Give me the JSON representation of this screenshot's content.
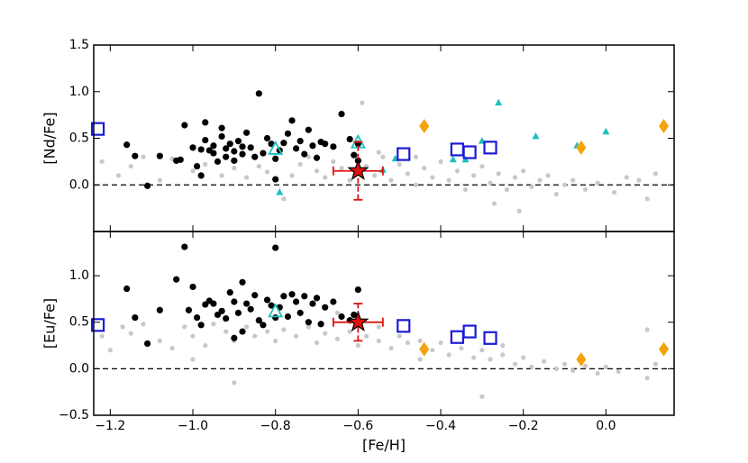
{
  "chart_data": [
    {
      "type": "scatter",
      "ylabel": "[Nd/Fe]",
      "xlim": [
        -1.24,
        0.165
      ],
      "ylim": [
        -0.5,
        1.5
      ],
      "xticks": [
        -1.2,
        -1.0,
        -0.8,
        -0.6,
        -0.4,
        -0.2,
        0.0
      ],
      "xtick_labels_shown": false,
      "yticks": [
        {
          "value": 0.0,
          "label": "0.0"
        },
        {
          "value": 0.5,
          "label": "0.5"
        },
        {
          "value": 1.0,
          "label": "1.0"
        },
        {
          "value": 1.5,
          "label": "1.5"
        }
      ],
      "hline": 0,
      "series": [
        {
          "color": "#c8c8c8",
          "marker": "dot",
          "x": [
            -1.22,
            -1.18,
            -1.15,
            -1.12,
            -1.08,
            -1.05,
            -1.0,
            -0.97,
            -0.93,
            -0.9,
            -0.87,
            -0.84,
            -0.82,
            -0.78,
            -0.76,
            -0.74,
            -0.72,
            -0.7,
            -0.68,
            -0.66,
            -0.64,
            -0.62,
            -0.59,
            -0.58,
            -0.56,
            -0.54,
            -0.52,
            -0.5,
            -0.48,
            -0.46,
            -0.44,
            -0.42,
            -0.4,
            -0.38,
            -0.36,
            -0.34,
            -0.32,
            -0.3,
            -0.28,
            -0.26,
            -0.24,
            -0.22,
            -0.2,
            -0.18,
            -0.16,
            -0.14,
            -0.12,
            -0.1,
            -0.08,
            -0.05,
            -0.02,
            0.02,
            0.05,
            0.08,
            0.1,
            0.12,
            -0.21,
            -0.27,
            -0.46,
            -0.55
          ],
          "values": [
            0.25,
            0.1,
            0.2,
            0.3,
            0.05,
            0.28,
            0.15,
            0.22,
            0.1,
            0.18,
            0.08,
            0.2,
            0.14,
            -0.15,
            0.1,
            0.22,
            0.3,
            0.15,
            0.08,
            0.25,
            0.18,
            0.05,
            0.88,
            0.2,
            0.1,
            0.3,
            0.05,
            0.22,
            0.12,
            0.0,
            0.18,
            0.08,
            0.25,
            0.05,
            0.15,
            -0.05,
            0.1,
            0.2,
            0.02,
            0.12,
            -0.05,
            0.08,
            0.15,
            -0.02,
            0.05,
            0.1,
            -0.1,
            0.0,
            0.05,
            -0.05,
            0.02,
            -0.08,
            0.08,
            0.05,
            -0.15,
            0.12,
            -0.28,
            -0.2,
            0.3,
            0.35
          ]
        },
        {
          "color": "#000000",
          "marker": "circle",
          "x": [
            -1.16,
            -1.14,
            -1.11,
            -1.08,
            -1.04,
            -1.03,
            -1.02,
            -1.0,
            -0.99,
            -0.98,
            -0.98,
            -0.97,
            -0.96,
            -0.95,
            -0.95,
            -0.94,
            -0.93,
            -0.92,
            -0.92,
            -0.91,
            -0.9,
            -0.9,
            -0.89,
            -0.88,
            -0.88,
            -0.87,
            -0.86,
            -0.85,
            -0.84,
            -0.83,
            -0.82,
            -0.81,
            -0.8,
            -0.8,
            -0.79,
            -0.78,
            -0.77,
            -0.76,
            -0.75,
            -0.74,
            -0.73,
            -0.72,
            -0.71,
            -0.7,
            -0.69,
            -0.68,
            -0.66,
            -0.64,
            -0.62,
            -0.61,
            -0.6,
            -0.6,
            -0.97,
            -0.93
          ],
          "values": [
            0.43,
            0.31,
            -0.01,
            0.31,
            0.26,
            0.27,
            0.64,
            0.4,
            0.2,
            0.1,
            0.38,
            0.48,
            0.37,
            0.34,
            0.42,
            0.25,
            0.52,
            0.39,
            0.3,
            0.44,
            0.36,
            0.26,
            0.47,
            0.41,
            0.33,
            0.56,
            0.4,
            0.3,
            0.98,
            0.34,
            0.5,
            0.44,
            0.06,
            0.28,
            0.37,
            0.45,
            0.55,
            0.69,
            0.39,
            0.47,
            0.33,
            0.59,
            0.42,
            0.29,
            0.46,
            0.44,
            0.41,
            0.76,
            0.49,
            0.32,
            0.26,
            0.44,
            0.67,
            0.61
          ]
        },
        {
          "color": "#1fbfbf",
          "marker": "triangle-open",
          "x": [
            -0.8,
            -0.6
          ],
          "values": [
            0.38,
            0.45
          ]
        },
        {
          "color": "#1fbfbf",
          "marker": "triangle",
          "x": [
            -0.79,
            -0.54,
            -0.51,
            -0.37,
            -0.34,
            -0.3,
            -0.26,
            -0.17,
            -0.07,
            0.0
          ],
          "values": [
            -0.08,
            0.16,
            0.28,
            0.27,
            0.27,
            0.47,
            0.88,
            0.52,
            0.42,
            0.57
          ]
        },
        {
          "color": "#1a1ad6",
          "marker": "square-open",
          "x": [
            -1.23,
            -0.49,
            -0.36,
            -0.33,
            -0.28
          ],
          "values": [
            0.6,
            0.33,
            0.38,
            0.35,
            0.4
          ]
        },
        {
          "color": "#f5a30a",
          "marker": "diamond",
          "x": [
            -0.44,
            -0.06,
            0.14
          ],
          "values": [
            0.63,
            0.4,
            0.63
          ]
        },
        {
          "color": "#e01010",
          "marker": "star",
          "x": [
            -0.6
          ],
          "values": [
            0.15
          ],
          "xerr": [
            0.06
          ],
          "yerr": [
            0.31
          ]
        }
      ]
    },
    {
      "type": "scatter",
      "ylabel": "[Eu/Fe]",
      "xlabel": "[Fe/H]",
      "xlim": [
        -1.24,
        0.165
      ],
      "ylim": [
        -0.5,
        1.475
      ],
      "xticks": [
        {
          "value": -1.2,
          "label": "−1.2"
        },
        {
          "value": -1.0,
          "label": "−1.0"
        },
        {
          "value": -0.8,
          "label": "−0.8"
        },
        {
          "value": -0.6,
          "label": "−0.6"
        },
        {
          "value": -0.4,
          "label": "−0.4"
        },
        {
          "value": -0.2,
          "label": "−0.2"
        },
        {
          "value": 0.0,
          "label": "0.0"
        }
      ],
      "xtick_labels_shown": true,
      "yticks": [
        {
          "value": -0.5,
          "label": "−0.5"
        },
        {
          "value": 0.0,
          "label": "0.0"
        },
        {
          "value": 0.5,
          "label": "0.5"
        },
        {
          "value": 1.0,
          "label": "1.0"
        }
      ],
      "hline": 0,
      "series": [
        {
          "color": "#c8c8c8",
          "marker": "dot",
          "x": [
            -1.22,
            -1.2,
            -1.17,
            -1.15,
            -1.12,
            -1.08,
            -1.05,
            -1.02,
            -1.0,
            -0.97,
            -0.95,
            -0.92,
            -0.9,
            -0.87,
            -0.85,
            -0.82,
            -0.8,
            -0.78,
            -0.75,
            -0.72,
            -0.7,
            -0.68,
            -0.65,
            -0.62,
            -0.6,
            -0.58,
            -0.55,
            -0.52,
            -0.5,
            -0.48,
            -0.45,
            -0.42,
            -0.4,
            -0.38,
            -0.35,
            -0.32,
            -0.3,
            -0.28,
            -0.25,
            -0.22,
            -0.2,
            -0.18,
            -0.15,
            -0.12,
            -0.1,
            -0.08,
            -0.05,
            -0.02,
            0.0,
            0.03,
            0.1,
            0.1,
            -0.9,
            -0.3,
            -0.65,
            -0.55,
            -0.45,
            -0.25,
            0.12,
            -1.0
          ],
          "values": [
            0.35,
            0.2,
            0.45,
            0.38,
            0.48,
            0.3,
            0.22,
            0.45,
            0.35,
            0.25,
            0.48,
            0.4,
            0.3,
            0.45,
            0.35,
            0.4,
            0.3,
            0.42,
            0.35,
            0.45,
            0.28,
            0.38,
            0.32,
            0.4,
            0.25,
            0.35,
            0.3,
            0.22,
            0.35,
            0.28,
            0.3,
            0.2,
            0.28,
            0.15,
            0.22,
            0.12,
            0.2,
            0.1,
            0.15,
            0.05,
            0.12,
            0.02,
            0.08,
            0.0,
            0.05,
            -0.02,
            0.03,
            -0.05,
            0.02,
            -0.03,
            0.42,
            -0.1,
            -0.15,
            -0.3,
            0.6,
            0.45,
            0.1,
            0.25,
            0.05,
            0.1
          ]
        },
        {
          "color": "#000000",
          "marker": "circle",
          "x": [
            -1.16,
            -1.14,
            -1.11,
            -1.08,
            -1.04,
            -1.02,
            -1.01,
            -1.0,
            -0.99,
            -0.98,
            -0.97,
            -0.96,
            -0.95,
            -0.94,
            -0.93,
            -0.92,
            -0.91,
            -0.9,
            -0.9,
            -0.89,
            -0.88,
            -0.88,
            -0.87,
            -0.86,
            -0.85,
            -0.84,
            -0.83,
            -0.82,
            -0.81,
            -0.8,
            -0.8,
            -0.79,
            -0.78,
            -0.77,
            -0.76,
            -0.75,
            -0.74,
            -0.73,
            -0.72,
            -0.71,
            -0.7,
            -0.69,
            -0.68,
            -0.66,
            -0.64,
            -0.62,
            -0.61,
            -0.6
          ],
          "values": [
            0.86,
            0.55,
            0.27,
            0.63,
            0.96,
            1.31,
            0.63,
            0.88,
            0.55,
            0.47,
            0.69,
            0.73,
            0.7,
            0.58,
            0.62,
            0.54,
            0.82,
            0.72,
            0.33,
            0.6,
            0.4,
            0.93,
            0.7,
            0.64,
            0.79,
            0.52,
            0.47,
            0.74,
            0.68,
            1.3,
            0.55,
            0.66,
            0.78,
            0.56,
            0.8,
            0.72,
            0.6,
            0.78,
            0.5,
            0.7,
            0.76,
            0.48,
            0.66,
            0.72,
            0.56,
            0.52,
            0.58,
            0.85
          ]
        },
        {
          "color": "#1fbfbf",
          "marker": "triangle-open",
          "x": [
            -0.8
          ],
          "values": [
            0.61
          ]
        },
        {
          "color": "#1a1ad6",
          "marker": "square-open",
          "x": [
            -1.23,
            -0.49,
            -0.36,
            -0.33,
            -0.28
          ],
          "values": [
            0.47,
            0.46,
            0.34,
            0.4,
            0.33
          ]
        },
        {
          "color": "#f5a30a",
          "marker": "diamond",
          "x": [
            -0.44,
            -0.06,
            0.14
          ],
          "values": [
            0.21,
            0.1,
            0.21
          ]
        },
        {
          "color": "#e01010",
          "marker": "star",
          "x": [
            -0.6
          ],
          "values": [
            0.5
          ],
          "xerr": [
            0.06
          ],
          "yerr": [
            0.2
          ]
        }
      ]
    }
  ]
}
